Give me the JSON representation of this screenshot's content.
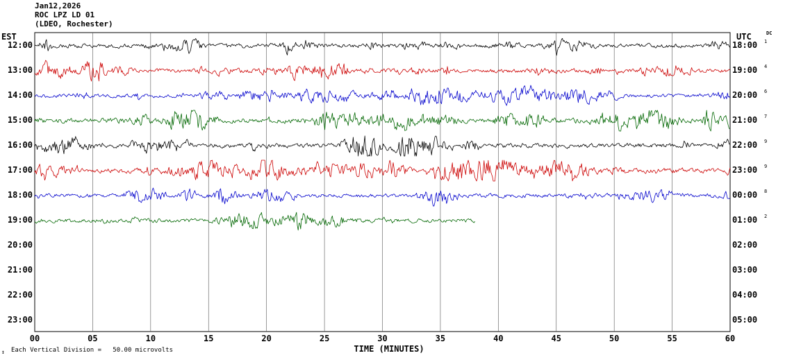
{
  "header": {
    "date": "Jan12,2026",
    "station": "ROC LPZ LD 01",
    "location": "(LDEO, Rochester)"
  },
  "axes": {
    "left_label": "EST",
    "right_label": "UTC",
    "dc_label": "DC",
    "xlabel": "TIME (MINUTES)",
    "x_ticks": [
      "00",
      "05",
      "10",
      "15",
      "20",
      "25",
      "30",
      "35",
      "40",
      "45",
      "50",
      "55",
      "60"
    ]
  },
  "footer": {
    "scale_note": "Each Vertical Division =   50.00 microvolts",
    "corner_mark": "↕"
  },
  "chart_data": {
    "type": "line",
    "subtype": "seismogram-helicorder",
    "title": "ROC LPZ LD 01 (LDEO, Rochester) Jan12,2026",
    "xlabel": "TIME (MINUTES)",
    "x_range_minutes": [
      0,
      60
    ],
    "minutes_per_division": 5,
    "vertical_division_microvolts": 50.0,
    "grid": true,
    "colors": {
      "black": "#000000",
      "red": "#cc0000",
      "blue": "#0000cc",
      "green": "#006600"
    },
    "rows": [
      {
        "est": "12:00",
        "utc": "18:00",
        "color": "black",
        "dc": "1",
        "trace_end_minute": 60,
        "amp": 1.0
      },
      {
        "est": "13:00",
        "utc": "19:00",
        "color": "red",
        "dc": "4",
        "trace_end_minute": 60,
        "amp": 1.0
      },
      {
        "est": "14:00",
        "utc": "20:00",
        "color": "blue",
        "dc": "6",
        "trace_end_minute": 60,
        "amp": 0.9
      },
      {
        "est": "15:00",
        "utc": "21:00",
        "color": "green",
        "dc": "7",
        "trace_end_minute": 60,
        "amp": 1.25
      },
      {
        "est": "16:00",
        "utc": "22:00",
        "color": "black",
        "dc": "9",
        "trace_end_minute": 60,
        "amp": 1.1
      },
      {
        "est": "17:00",
        "utc": "23:00",
        "color": "red",
        "dc": "9",
        "trace_end_minute": 60,
        "amp": 1.15
      },
      {
        "est": "18:00",
        "utc": "00:00",
        "color": "blue",
        "dc": "8",
        "trace_end_minute": 60,
        "amp": 0.95
      },
      {
        "est": "19:00",
        "utc": "01:00",
        "color": "green",
        "dc": "2",
        "trace_end_minute": 38,
        "amp": 1.0
      },
      {
        "est": "20:00",
        "utc": "02:00",
        "color": "black",
        "dc": "",
        "trace_end_minute": 0,
        "amp": 0
      },
      {
        "est": "21:00",
        "utc": "03:00",
        "color": "red",
        "dc": "",
        "trace_end_minute": 0,
        "amp": 0
      },
      {
        "est": "22:00",
        "utc": "04:00",
        "color": "blue",
        "dc": "",
        "trace_end_minute": 0,
        "amp": 0
      },
      {
        "est": "23:00",
        "utc": "05:00",
        "color": "green",
        "dc": "",
        "trace_end_minute": 0,
        "amp": 0
      }
    ]
  }
}
